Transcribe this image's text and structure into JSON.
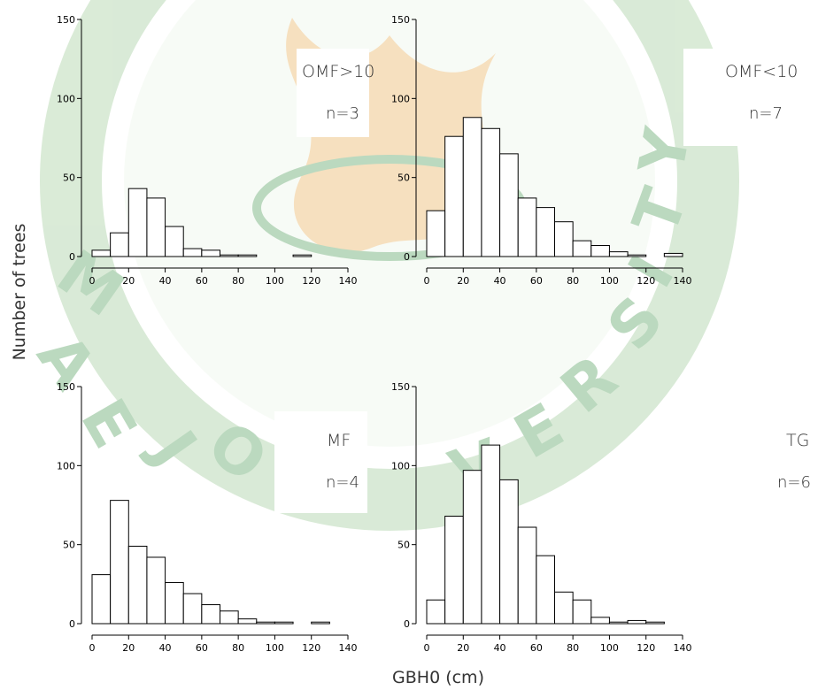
{
  "axis_labels": {
    "y": "Number of trees",
    "x": "GBH0 (cm)"
  },
  "watermark": {
    "text": "MAEJO UNIVERSITY",
    "colors": {
      "green": "#2f8a3a",
      "gold": "#e6a23c",
      "ring": "#8cc084"
    }
  },
  "panels": [
    {
      "id": "omf-gt10",
      "tag": "OMF>10",
      "count": "n=3"
    },
    {
      "id": "omf-lt10",
      "tag": "OMF<10",
      "count": "n=7"
    },
    {
      "id": "mf",
      "tag": "MF",
      "count": "n=4"
    },
    {
      "id": "tg",
      "tag": "TG",
      "count": "n=6"
    }
  ],
  "chart_data": [
    {
      "type": "bar",
      "panel": "OMF>10",
      "bin_edges": [
        0,
        10,
        20,
        30,
        40,
        50,
        60,
        70,
        80,
        90,
        100,
        110,
        120,
        130,
        140
      ],
      "values": [
        4,
        15,
        43,
        37,
        19,
        5,
        4,
        1,
        1,
        0,
        0,
        1,
        0,
        0
      ],
      "xlim": [
        0,
        140
      ],
      "ylim": [
        0,
        150
      ],
      "xticks": [
        0,
        20,
        40,
        60,
        80,
        100,
        120,
        140
      ],
      "yticks": [
        0,
        50,
        100,
        150
      ],
      "xlabel": "GBH0 (cm)",
      "ylabel": "Number of trees"
    },
    {
      "type": "bar",
      "panel": "OMF<10",
      "bin_edges": [
        0,
        10,
        20,
        30,
        40,
        50,
        60,
        70,
        80,
        90,
        100,
        110,
        120,
        130,
        140
      ],
      "values": [
        29,
        76,
        88,
        81,
        65,
        37,
        31,
        22,
        10,
        7,
        3,
        1,
        0,
        2
      ],
      "xlim": [
        0,
        140
      ],
      "ylim": [
        0,
        150
      ],
      "xticks": [
        0,
        20,
        40,
        60,
        80,
        100,
        120,
        140
      ],
      "yticks": [
        0,
        50,
        100,
        150
      ],
      "xlabel": "GBH0 (cm)",
      "ylabel": "Number of trees"
    },
    {
      "type": "bar",
      "panel": "MF",
      "bin_edges": [
        0,
        10,
        20,
        30,
        40,
        50,
        60,
        70,
        80,
        90,
        100,
        110,
        120,
        130,
        140
      ],
      "values": [
        31,
        78,
        49,
        42,
        26,
        19,
        12,
        8,
        3,
        1,
        1,
        0,
        1,
        0
      ],
      "xlim": [
        0,
        140
      ],
      "ylim": [
        0,
        150
      ],
      "xticks": [
        0,
        20,
        40,
        60,
        80,
        100,
        120,
        140
      ],
      "yticks": [
        0,
        50,
        100,
        150
      ],
      "xlabel": "GBH0 (cm)",
      "ylabel": "Number of trees"
    },
    {
      "type": "bar",
      "panel": "TG",
      "bin_edges": [
        0,
        10,
        20,
        30,
        40,
        50,
        60,
        70,
        80,
        90,
        100,
        110,
        120,
        130,
        140
      ],
      "values": [
        15,
        68,
        97,
        113,
        91,
        61,
        43,
        20,
        15,
        4,
        1,
        2,
        1,
        0
      ],
      "xlim": [
        0,
        140
      ],
      "ylim": [
        0,
        150
      ],
      "xticks": [
        0,
        20,
        40,
        60,
        80,
        100,
        120,
        140
      ],
      "yticks": [
        0,
        50,
        100,
        150
      ],
      "xlabel": "GBH0 (cm)",
      "ylabel": "Number of trees"
    }
  ]
}
